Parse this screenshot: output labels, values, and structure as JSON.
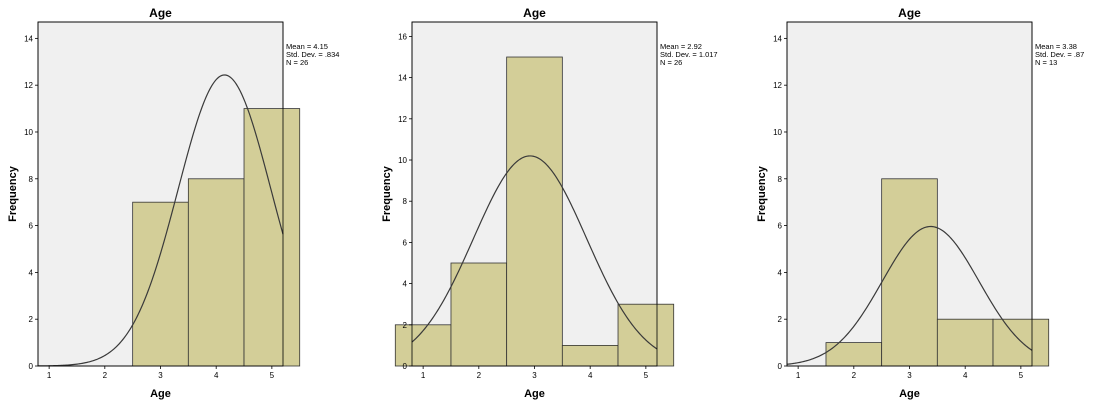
{
  "chart_data": [
    {
      "type": "bar",
      "title": "Age",
      "xlabel": "Age",
      "ylabel": "Frequency",
      "x": [
        3,
        4,
        5
      ],
      "values": [
        7,
        8,
        11
      ],
      "xlim": [
        0.8,
        5.2
      ],
      "xticks": [
        1,
        2,
        3,
        4,
        5
      ],
      "ylim": [
        0,
        14.7
      ],
      "yticks": [
        0,
        2,
        4,
        6,
        8,
        10,
        12,
        14
      ],
      "normal_curve": {
        "mean": 4.15,
        "sd": 0.834,
        "n": 26
      },
      "stats": [
        "Mean = 4.15",
        "Std. Dev. = .834",
        "N = 26"
      ],
      "grid": false,
      "colors": {
        "bar": "#d3ce98",
        "plot_bg": "#f0f0f0",
        "curve": "#3a3a3a"
      }
    },
    {
      "type": "bar",
      "title": "Age",
      "xlabel": "Age",
      "ylabel": "Frequency",
      "x": [
        1,
        2,
        3,
        4,
        5
      ],
      "values": [
        2,
        5,
        15,
        1,
        3
      ],
      "xlim": [
        0.8,
        5.2
      ],
      "xticks": [
        1,
        2,
        3,
        4,
        5
      ],
      "ylim": [
        0,
        16.7
      ],
      "yticks": [
        0,
        2,
        4,
        6,
        8,
        10,
        12,
        14,
        16
      ],
      "normal_curve": {
        "mean": 2.92,
        "sd": 1.017,
        "n": 26
      },
      "stats": [
        "Mean = 2.92",
        "Std. Dev. = 1.017",
        "N = 26"
      ],
      "grid": false,
      "colors": {
        "bar": "#d3ce98",
        "plot_bg": "#f0f0f0",
        "curve": "#3a3a3a"
      }
    },
    {
      "type": "bar",
      "title": "Age",
      "xlabel": "Age",
      "ylabel": "Frequency",
      "x": [
        2,
        3,
        4,
        5
      ],
      "values": [
        1,
        8,
        2,
        2
      ],
      "xlim": [
        0.8,
        5.2
      ],
      "xticks": [
        1,
        2,
        3,
        4,
        5
      ],
      "ylim": [
        0,
        14.7
      ],
      "yticks": [
        0,
        2,
        4,
        6,
        8,
        10,
        12,
        14
      ],
      "normal_curve": {
        "mean": 3.38,
        "sd": 0.87,
        "n": 13
      },
      "stats": [
        "Mean = 3.38",
        "Std. Dev. = .87",
        "N = 13"
      ],
      "grid": false,
      "colors": {
        "bar": "#d3ce98",
        "plot_bg": "#f0f0f0",
        "curve": "#3a3a3a"
      }
    }
  ]
}
